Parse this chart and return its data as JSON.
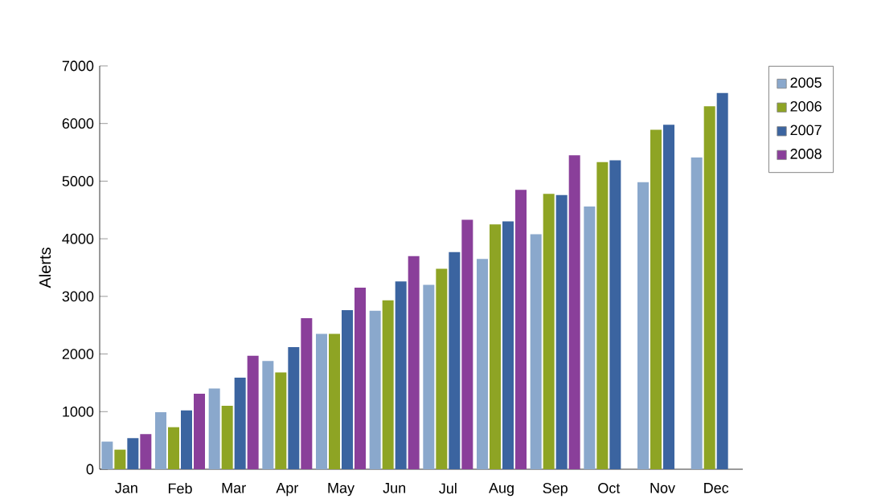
{
  "chart_data": {
    "type": "bar",
    "ylabel": "Alerts",
    "categories": [
      "Jan",
      "Feb",
      "Mar",
      "Apr",
      "May",
      "Jun",
      "Jul",
      "Aug",
      "Sep",
      "Oct",
      "Nov",
      "Dec"
    ],
    "series": [
      {
        "name": "2005",
        "color": "#8aa8cc",
        "values": [
          480,
          990,
          1400,
          1880,
          2350,
          2750,
          3200,
          3650,
          4080,
          4560,
          4980,
          5410
        ]
      },
      {
        "name": "2006",
        "color": "#8ea424",
        "values": [
          340,
          730,
          1100,
          1680,
          2350,
          2930,
          3480,
          4250,
          4780,
          5330,
          5890,
          6300
        ]
      },
      {
        "name": "2007",
        "color": "#3b64a0",
        "values": [
          540,
          1020,
          1590,
          2120,
          2760,
          3260,
          3770,
          4300,
          4760,
          5360,
          5980,
          6530
        ]
      },
      {
        "name": "2008",
        "color": "#8a3f9a",
        "values": [
          610,
          1310,
          1970,
          2620,
          3150,
          3700,
          4330,
          4850,
          5450,
          null,
          null,
          null
        ]
      }
    ],
    "ylim": [
      0,
      7000
    ],
    "yticks": [
      0,
      1000,
      2000,
      3000,
      4000,
      5000,
      6000,
      7000
    ],
    "grid": false,
    "legend": "top right"
  }
}
